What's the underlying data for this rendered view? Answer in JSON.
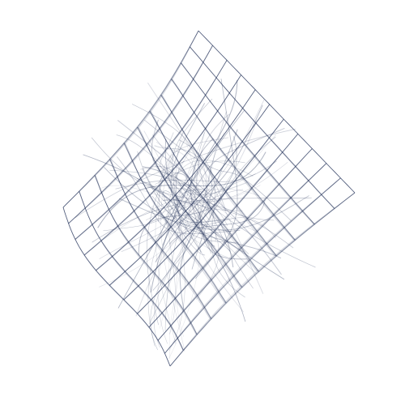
{
  "artwork": {
    "background_color": "#ffffff",
    "line_color": "#1e2d55",
    "grid_divisions": 11
  }
}
